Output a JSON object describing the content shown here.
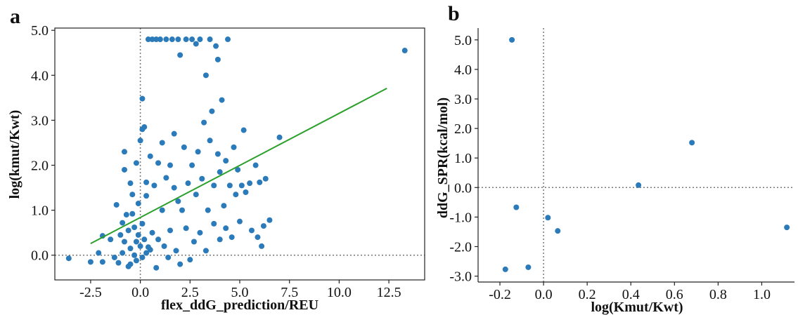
{
  "chart_data": [
    {
      "type": "scatter",
      "panel_label": "a",
      "xlabel": "flex_ddG_prediction/REU",
      "ylabel": "log(kmut/Kwt)",
      "xlim": [
        -4.3,
        14.3
      ],
      "ylim": [
        -0.55,
        5.05
      ],
      "x_ticks": [
        -2.5,
        0.0,
        2.5,
        5.0,
        7.5,
        10.0,
        12.5
      ],
      "x_tick_labels": [
        "-2.5",
        "0.0",
        "2.5",
        "5.0",
        "7.5",
        "10.0",
        "12.5"
      ],
      "y_ticks": [
        0.0,
        1.0,
        2.0,
        3.0,
        4.0,
        5.0
      ],
      "y_tick_labels": [
        "0.0",
        "1.0",
        "2.0",
        "3.0",
        "4.0",
        "5.0"
      ],
      "reference_lines": {
        "x": 0.0,
        "y": 0.0,
        "style": "dotted",
        "color": "#777777"
      },
      "point_color": "#2b7bba",
      "fit_line": {
        "x": [
          -2.5,
          12.4
        ],
        "y": [
          0.26,
          3.71
        ],
        "color": "#2ca02c"
      },
      "points": [
        [
          -3.6,
          -0.07
        ],
        [
          -2.5,
          -0.15
        ],
        [
          -2.1,
          0.05
        ],
        [
          -1.9,
          -0.15
        ],
        [
          -1.9,
          0.43
        ],
        [
          -1.5,
          0.35
        ],
        [
          -1.3,
          -0.05
        ],
        [
          -1.2,
          1.12
        ],
        [
          -1.1,
          -0.17
        ],
        [
          -1.0,
          0.45
        ],
        [
          -0.9,
          0.72
        ],
        [
          -0.9,
          0.05
        ],
        [
          -0.8,
          2.3
        ],
        [
          -0.8,
          1.9
        ],
        [
          -0.8,
          0.3
        ],
        [
          -0.7,
          0.9
        ],
        [
          -0.6,
          -0.25
        ],
        [
          -0.6,
          0.55
        ],
        [
          -0.5,
          -0.2
        ],
        [
          -0.5,
          1.6
        ],
        [
          -0.5,
          0.15
        ],
        [
          -0.4,
          0.92
        ],
        [
          -0.4,
          1.35
        ],
        [
          -0.3,
          0.0
        ],
        [
          -0.3,
          0.62
        ],
        [
          -0.2,
          -0.12
        ],
        [
          -0.2,
          2.05
        ],
        [
          -0.2,
          0.3
        ],
        [
          -0.1,
          1.15
        ],
        [
          -0.1,
          0.45
        ],
        [
          0.0,
          0.2
        ],
        [
          0.0,
          2.55
        ],
        [
          0.1,
          2.8
        ],
        [
          0.1,
          3.48
        ],
        [
          0.1,
          -0.05
        ],
        [
          0.1,
          0.7
        ],
        [
          0.2,
          0.35
        ],
        [
          0.2,
          2.85
        ],
        [
          0.3,
          1.62
        ],
        [
          0.3,
          0.05
        ],
        [
          0.3,
          1.32
        ],
        [
          0.4,
          4.8
        ],
        [
          0.4,
          0.18
        ],
        [
          0.5,
          0.12
        ],
        [
          0.5,
          2.2
        ],
        [
          0.6,
          4.8
        ],
        [
          0.6,
          0.5
        ],
        [
          0.7,
          1.55
        ],
        [
          0.8,
          -0.28
        ],
        [
          0.8,
          4.8
        ],
        [
          0.9,
          0.35
        ],
        [
          0.9,
          2.05
        ],
        [
          1.0,
          4.8
        ],
        [
          1.1,
          1.0
        ],
        [
          1.1,
          2.5
        ],
        [
          1.2,
          0.2
        ],
        [
          1.3,
          4.8
        ],
        [
          1.3,
          1.72
        ],
        [
          1.4,
          -0.05
        ],
        [
          1.5,
          2.0
        ],
        [
          1.5,
          0.55
        ],
        [
          1.6,
          4.8
        ],
        [
          1.7,
          1.5
        ],
        [
          1.7,
          2.7
        ],
        [
          1.8,
          0.1
        ],
        [
          1.9,
          4.8
        ],
        [
          1.9,
          1.2
        ],
        [
          2.0,
          -0.2
        ],
        [
          2.0,
          4.45
        ],
        [
          2.1,
          1.0
        ],
        [
          2.2,
          2.4
        ],
        [
          2.3,
          0.6
        ],
        [
          2.3,
          4.8
        ],
        [
          2.4,
          1.6
        ],
        [
          2.5,
          -0.1
        ],
        [
          2.6,
          4.8
        ],
        [
          2.6,
          2.0
        ],
        [
          2.7,
          0.3
        ],
        [
          2.8,
          4.7
        ],
        [
          2.8,
          1.35
        ],
        [
          2.9,
          2.3
        ],
        [
          3.0,
          4.8
        ],
        [
          3.0,
          0.5
        ],
        [
          3.1,
          1.7
        ],
        [
          3.2,
          2.95
        ],
        [
          3.3,
          4.0
        ],
        [
          3.3,
          0.1
        ],
        [
          3.4,
          1.0
        ],
        [
          3.5,
          2.55
        ],
        [
          3.5,
          4.8
        ],
        [
          3.6,
          3.2
        ],
        [
          3.7,
          0.7
        ],
        [
          3.7,
          1.55
        ],
        [
          3.8,
          4.65
        ],
        [
          3.9,
          2.25
        ],
        [
          3.9,
          4.35
        ],
        [
          4.0,
          0.35
        ],
        [
          4.0,
          1.85
        ],
        [
          4.1,
          3.45
        ],
        [
          4.2,
          1.1
        ],
        [
          4.3,
          2.1
        ],
        [
          4.3,
          0.6
        ],
        [
          4.4,
          4.8
        ],
        [
          4.5,
          1.55
        ],
        [
          4.6,
          0.4
        ],
        [
          4.7,
          2.4
        ],
        [
          4.8,
          1.35
        ],
        [
          4.9,
          1.9
        ],
        [
          5.0,
          0.75
        ],
        [
          5.1,
          1.55
        ],
        [
          5.2,
          2.78
        ],
        [
          5.3,
          1.4
        ],
        [
          5.5,
          1.6
        ],
        [
          5.6,
          0.55
        ],
        [
          5.8,
          2.0
        ],
        [
          5.9,
          0.4
        ],
        [
          6.0,
          1.62
        ],
        [
          6.1,
          0.2
        ],
        [
          6.2,
          0.65
        ],
        [
          6.3,
          1.7
        ],
        [
          6.5,
          0.78
        ],
        [
          7.0,
          2.62
        ],
        [
          13.3,
          4.55
        ]
      ]
    },
    {
      "type": "scatter",
      "panel_label": "b",
      "xlabel": "log(Kmut/Kwt)",
      "ylabel": "ddG_SPR(kcal/mol)",
      "xlim": [
        -0.3,
        1.15
      ],
      "ylim": [
        -3.2,
        5.4
      ],
      "x_ticks": [
        -0.2,
        0.0,
        0.2,
        0.4,
        0.6,
        0.8,
        1.0
      ],
      "x_tick_labels": [
        "-0.2",
        "0.0",
        "0.2",
        "0.4",
        "0.6",
        "0.8",
        "1.0"
      ],
      "y_ticks": [
        -3.0,
        -2.0,
        -1.0,
        0.0,
        1.0,
        2.0,
        3.0,
        4.0,
        5.0
      ],
      "y_tick_labels": [
        "-3.0",
        "-2.0",
        "-1.0",
        "0.0",
        "1.0",
        "2.0",
        "3.0",
        "4.0",
        "5.0"
      ],
      "reference_lines": {
        "x": 0.0,
        "y": 0.0,
        "style": "dotted",
        "color": "#777777"
      },
      "point_color": "#2b7bba",
      "points": [
        [
          -0.145,
          5.0
        ],
        [
          -0.125,
          -0.67
        ],
        [
          -0.175,
          -2.77
        ],
        [
          -0.07,
          -2.7
        ],
        [
          0.02,
          -1.02
        ],
        [
          0.065,
          -1.47
        ],
        [
          0.435,
          0.08
        ],
        [
          0.68,
          1.52
        ],
        [
          1.115,
          -1.35
        ]
      ]
    }
  ]
}
